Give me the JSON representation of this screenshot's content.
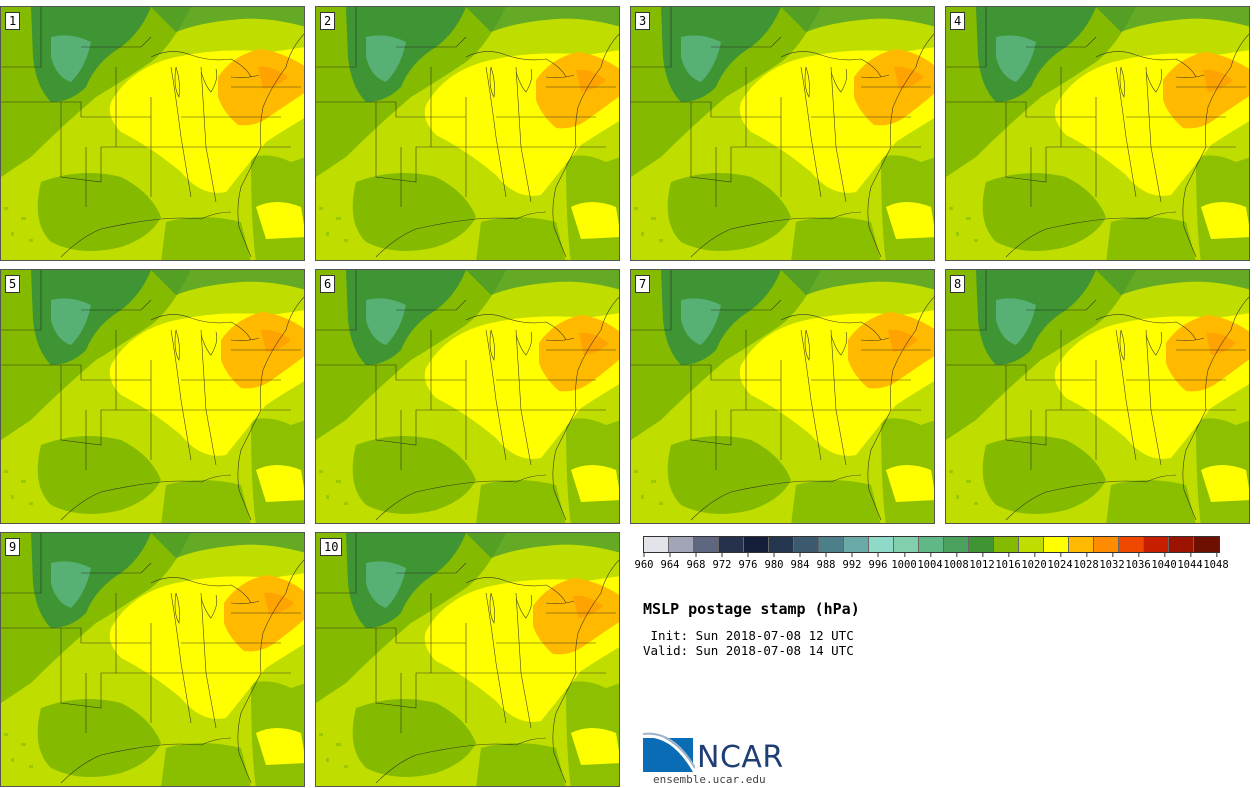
{
  "panels": [
    {
      "label": "1"
    },
    {
      "label": "2"
    },
    {
      "label": "3"
    },
    {
      "label": "4"
    },
    {
      "label": "5"
    },
    {
      "label": "6"
    },
    {
      "label": "7"
    },
    {
      "label": "8"
    },
    {
      "label": "9"
    },
    {
      "label": "10"
    }
  ],
  "colorbar": {
    "levels": [
      "960",
      "964",
      "968",
      "972",
      "976",
      "980",
      "984",
      "988",
      "992",
      "996",
      "1000",
      "1004",
      "1008",
      "1012",
      "1016",
      "1020",
      "1024",
      "1028",
      "1032",
      "1036",
      "1040",
      "1044",
      "1048"
    ],
    "colors": [
      "#e2e4ea",
      "#a2a5b7",
      "#5f6680",
      "#26314c",
      "#141e38",
      "#24374f",
      "#3b5a6e",
      "#4c7f8a",
      "#6aa9a6",
      "#8ed9c8",
      "#82cfae",
      "#5fb885",
      "#4aa25e",
      "#3f9434",
      "#84bb00",
      "#bfde00",
      "#ffff00",
      "#ffba00",
      "#ff8c00",
      "#ef4800",
      "#c81e00",
      "#9c1400",
      "#6e1000"
    ]
  },
  "map_colors": {
    "dark_green": "#3f9434",
    "teal": "#5fb885",
    "mid_green": "#84bb00",
    "light_green": "#bfde00",
    "yellow": "#ffff00",
    "orange": "#ffba00",
    "dark_orange": "#ff8c00"
  },
  "title": "MSLP postage stamp (hPa)",
  "init_line": " Init: Sun 2018-07-08 12 UTC",
  "valid_line": "Valid: Sun 2018-07-08 14 UTC",
  "logo": {
    "text": "NCAR",
    "url": "ensemble.ucar.edu"
  }
}
